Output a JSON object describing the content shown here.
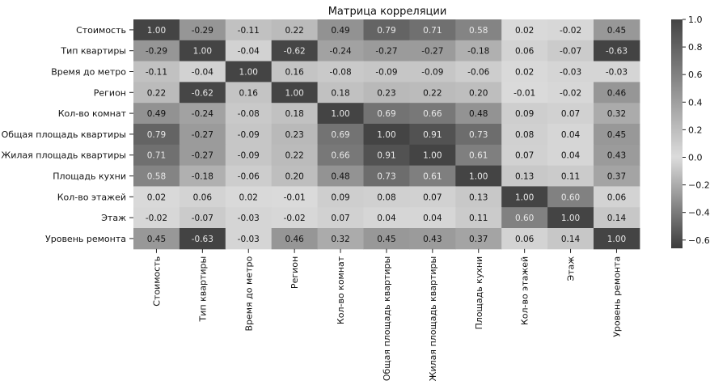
{
  "chart_data": {
    "type": "heatmap",
    "title": "Матрица корреляции",
    "rows": [
      "Стоимость",
      "Тип квартиры",
      "Время до метро",
      "Регион",
      "Кол-во комнат",
      "Общая площадь квартиры",
      "Жилая площадь квартиры",
      "Площадь кухни",
      "Кол-во этажей",
      "Этаж",
      "Уровень ремонта"
    ],
    "columns": [
      "Стоимость",
      "Тип квартиры",
      "Время до метро",
      "Регион",
      "Кол-во комнат",
      "Общая площадь квартиры",
      "Жилая площадь квартиры",
      "Площадь кухни",
      "Кол-во этажей",
      "Этаж",
      "Уровень ремонта"
    ],
    "values": [
      [
        "1.00",
        "-0.29",
        "-0.11",
        "0.22",
        "0.49",
        "0.79",
        "0.71",
        "0.58",
        "0.02",
        "-0.02",
        "0.45"
      ],
      [
        "-0.29",
        "1.00",
        "-0.04",
        "-0.62",
        "-0.24",
        "-0.27",
        "-0.27",
        "-0.18",
        "0.06",
        "-0.07",
        "-0.63"
      ],
      [
        "-0.11",
        "-0.04",
        "1.00",
        "0.16",
        "-0.08",
        "-0.09",
        "-0.09",
        "-0.06",
        "0.02",
        "-0.03",
        "-0.03"
      ],
      [
        "0.22",
        "-0.62",
        "0.16",
        "1.00",
        "0.18",
        "0.23",
        "0.22",
        "0.20",
        "-0.01",
        "-0.02",
        "0.46"
      ],
      [
        "0.49",
        "-0.24",
        "-0.08",
        "0.18",
        "1.00",
        "0.69",
        "0.66",
        "0.48",
        "0.09",
        "0.07",
        "0.32"
      ],
      [
        "0.79",
        "-0.27",
        "-0.09",
        "0.23",
        "0.69",
        "1.00",
        "0.91",
        "0.73",
        "0.08",
        "0.04",
        "0.45"
      ],
      [
        "0.71",
        "-0.27",
        "-0.09",
        "0.22",
        "0.66",
        "0.91",
        "1.00",
        "0.61",
        "0.07",
        "0.04",
        "0.43"
      ],
      [
        "0.58",
        "-0.18",
        "-0.06",
        "0.20",
        "0.48",
        "0.73",
        "0.61",
        "1.00",
        "0.13",
        "0.11",
        "0.37"
      ],
      [
        "0.02",
        "0.06",
        "0.02",
        "-0.01",
        "0.09",
        "0.08",
        "0.07",
        "0.13",
        "1.00",
        "0.60",
        "0.06"
      ],
      [
        "-0.02",
        "-0.07",
        "-0.03",
        "-0.02",
        "0.07",
        "0.04",
        "0.04",
        "0.11",
        "0.60",
        "1.00",
        "0.14"
      ],
      [
        "0.45",
        "-0.63",
        "-0.03",
        "0.46",
        "0.32",
        "0.45",
        "0.43",
        "0.37",
        "0.06",
        "0.14",
        "1.00"
      ]
    ],
    "colorbar": {
      "range": [
        -0.66,
        1.0
      ],
      "ticks": [
        "1.0",
        "0.8",
        "0.6",
        "0.4",
        "0.2",
        "0.0",
        "−0.2",
        "−0.4",
        "−0.6"
      ],
      "tick_values": [
        1.0,
        0.8,
        0.6,
        0.4,
        0.2,
        0.0,
        -0.2,
        -0.4,
        -0.6
      ]
    },
    "colormap": {
      "neutral": "#dcdcdc",
      "positive_extreme": "#444444",
      "negative_extreme": "#3c3c3c"
    }
  }
}
